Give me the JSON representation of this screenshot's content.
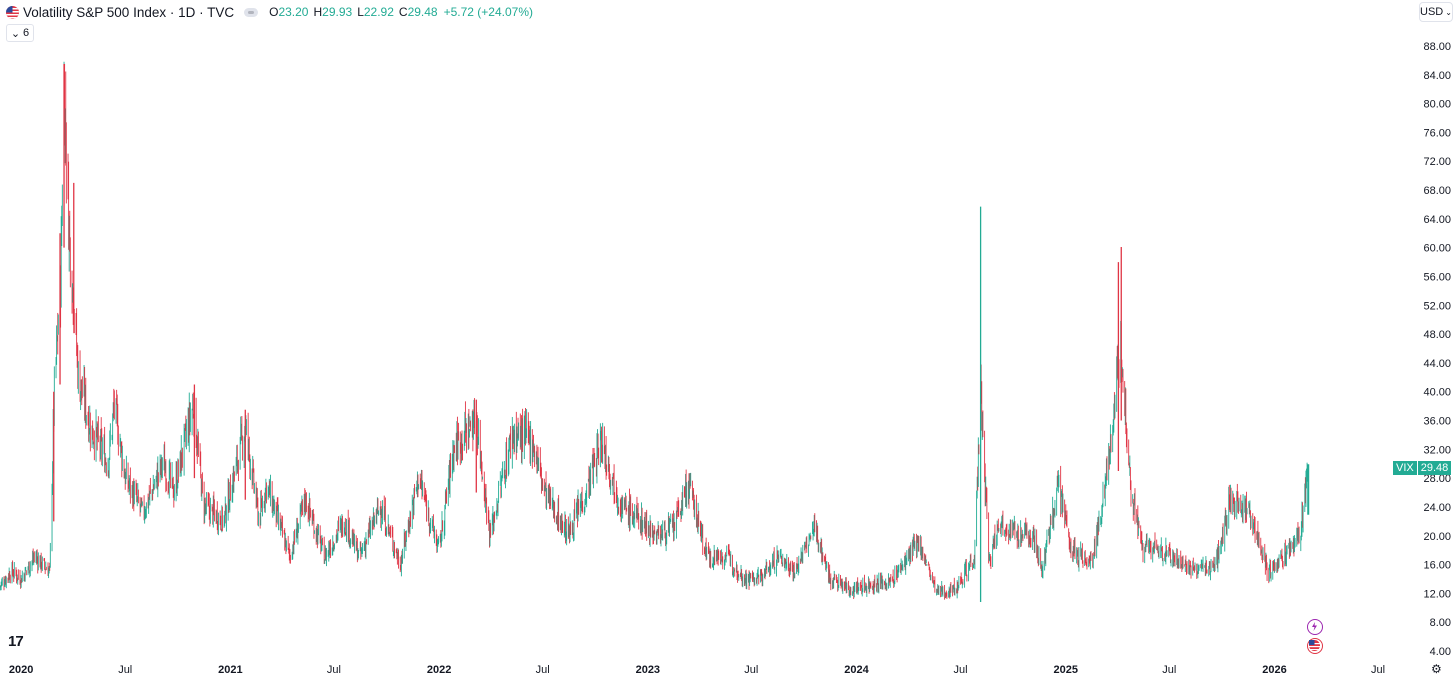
{
  "header": {
    "title": "Volatility S&P 500 Index · 1D · TVC",
    "open_key": "O",
    "open": "23.20",
    "high_key": "H",
    "high": "29.93",
    "low_key": "L",
    "low": "22.92",
    "close_key": "C",
    "close": "29.48",
    "change": "+5.72 (+24.07%)"
  },
  "indicators_toggle": {
    "count": "6"
  },
  "currency": "USD",
  "logo": "17",
  "last_price": {
    "symbol": "VIX",
    "value": "29.48"
  },
  "colors": {
    "up": "#22ab94",
    "down": "#e03545",
    "label": "#22ab94"
  },
  "icons": [
    "us-flag-icon",
    "visibility-toggle-icon",
    "chevron-down-icon",
    "lightning-event-icon",
    "flag-event-icon",
    "gear-icon"
  ],
  "chart_data": {
    "type": "candlestick",
    "title": "Volatility S&P 500 Index · 1D · TVC",
    "xlabel": "",
    "ylabel": "",
    "ylim": [
      4,
      88
    ],
    "y_ticks": [
      "88.00",
      "84.00",
      "80.00",
      "76.00",
      "72.00",
      "68.00",
      "64.00",
      "60.00",
      "56.00",
      "52.00",
      "48.00",
      "44.00",
      "40.00",
      "36.00",
      "32.00",
      "28.00",
      "24.00",
      "20.00",
      "16.00",
      "12.00",
      "8.00",
      "4.00"
    ],
    "x_ticks": [
      {
        "label": "2020",
        "date": "2020-01-01",
        "year": true
      },
      {
        "label": "Jul",
        "date": "2020-07-01",
        "year": false
      },
      {
        "label": "2021",
        "date": "2021-01-01",
        "year": true
      },
      {
        "label": "Jul",
        "date": "2021-07-01",
        "year": false
      },
      {
        "label": "2022",
        "date": "2022-01-01",
        "year": true
      },
      {
        "label": "Jul",
        "date": "2022-07-01",
        "year": false
      },
      {
        "label": "2023",
        "date": "2023-01-01",
        "year": true
      },
      {
        "label": "Jul",
        "date": "2023-07-01",
        "year": false
      },
      {
        "label": "2024",
        "date": "2024-01-01",
        "year": true
      },
      {
        "label": "Jul",
        "date": "2024-07-01",
        "year": false
      },
      {
        "label": "2025",
        "date": "2025-01-01",
        "year": true
      },
      {
        "label": "Jul",
        "date": "2025-07-01",
        "year": false
      },
      {
        "label": "2026",
        "date": "2026-01-01",
        "year": true
      },
      {
        "label": "Jul",
        "date": "2026-07-01",
        "year": false
      }
    ],
    "x_range": [
      "2019-11-25",
      "2026-08-05"
    ],
    "series": [
      {
        "path": [
          [
            "2019-11-25",
            13
          ],
          [
            "2019-12-15",
            15
          ],
          [
            "2020-01-01",
            14
          ],
          [
            "2020-01-25",
            17
          ],
          [
            "2020-02-20",
            15
          ],
          [
            "2020-02-28",
            40
          ],
          [
            "2020-03-10",
            55
          ],
          [
            "2020-03-16",
            82
          ],
          [
            "2020-03-25",
            62
          ],
          [
            "2020-04-10",
            42
          ],
          [
            "2020-05-01",
            35
          ],
          [
            "2020-06-01",
            30
          ],
          [
            "2020-06-12",
            38
          ],
          [
            "2020-07-01",
            28
          ],
          [
            "2020-08-01",
            23
          ],
          [
            "2020-09-05",
            30
          ],
          [
            "2020-09-24",
            26
          ],
          [
            "2020-10-28",
            38
          ],
          [
            "2020-11-15",
            24
          ],
          [
            "2020-12-20",
            22
          ],
          [
            "2021-01-27",
            35
          ],
          [
            "2021-02-20",
            22
          ],
          [
            "2021-03-05",
            27
          ],
          [
            "2021-04-15",
            17
          ],
          [
            "2021-05-12",
            25
          ],
          [
            "2021-06-15",
            17
          ],
          [
            "2021-07-19",
            22
          ],
          [
            "2021-08-15",
            17
          ],
          [
            "2021-09-20",
            24
          ],
          [
            "2021-10-25",
            16
          ],
          [
            "2021-11-26",
            28
          ],
          [
            "2021-12-20",
            21
          ],
          [
            "2022-01-01",
            18
          ],
          [
            "2022-01-26",
            32
          ],
          [
            "2022-02-24",
            35
          ],
          [
            "2022-03-07",
            36
          ],
          [
            "2022-03-31",
            20
          ],
          [
            "2022-05-09",
            34
          ],
          [
            "2022-06-13",
            33
          ],
          [
            "2022-07-05",
            26
          ],
          [
            "2022-08-15",
            20
          ],
          [
            "2022-09-15",
            26
          ],
          [
            "2022-10-12",
            33
          ],
          [
            "2022-11-15",
            24
          ],
          [
            "2022-12-20",
            22
          ],
          [
            "2023-01-15",
            20
          ],
          [
            "2023-02-15",
            21
          ],
          [
            "2023-03-13",
            27
          ],
          [
            "2023-04-15",
            17
          ],
          [
            "2023-05-20",
            17
          ],
          [
            "2023-06-20",
            14
          ],
          [
            "2023-07-15",
            14
          ],
          [
            "2023-08-18",
            17
          ],
          [
            "2023-09-15",
            15
          ],
          [
            "2023-10-20",
            21
          ],
          [
            "2023-11-15",
            14
          ],
          [
            "2023-12-20",
            12.5
          ],
          [
            "2024-01-20",
            13
          ],
          [
            "2024-03-01",
            13.5
          ],
          [
            "2024-04-19",
            19
          ],
          [
            "2024-05-20",
            12
          ],
          [
            "2024-06-20",
            12.5
          ],
          [
            "2024-07-25",
            17
          ],
          [
            "2024-08-05",
            39
          ],
          [
            "2024-08-20",
            16
          ],
          [
            "2024-09-06",
            22
          ],
          [
            "2024-10-10",
            20
          ],
          [
            "2024-11-05",
            20
          ],
          [
            "2024-11-20",
            15
          ],
          [
            "2024-12-18",
            27
          ],
          [
            "2025-01-10",
            18
          ],
          [
            "2025-02-15",
            16
          ],
          [
            "2025-03-10",
            26
          ],
          [
            "2025-04-08",
            46
          ],
          [
            "2025-04-25",
            26
          ],
          [
            "2025-05-15",
            18
          ],
          [
            "2025-06-15",
            18
          ],
          [
            "2025-07-15",
            16.5
          ],
          [
            "2025-08-15",
            15
          ],
          [
            "2025-09-20",
            16
          ],
          [
            "2025-10-16",
            25
          ],
          [
            "2025-11-20",
            23
          ],
          [
            "2025-12-20",
            15
          ],
          [
            "2026-01-20",
            17
          ],
          [
            "2026-02-15",
            20
          ],
          [
            "2026-03-01",
            29.48
          ]
        ],
        "spikes": [
          {
            "date": "2020-03-16",
            "high": 85.5,
            "low": 60
          },
          {
            "date": "2020-03-09",
            "high": 62,
            "low": 41
          },
          {
            "date": "2020-02-27",
            "high": 40,
            "low": 22
          },
          {
            "date": "2020-04-02",
            "high": 69,
            "low": 50
          },
          {
            "date": "2024-08-05",
            "high": 65.7,
            "low": 10.8
          },
          {
            "date": "2025-04-08",
            "high": 60.1,
            "low": 36
          },
          {
            "date": "2025-04-03",
            "high": 58,
            "low": 29
          },
          {
            "date": "2022-03-07",
            "high": 38.9,
            "low": 26
          },
          {
            "date": "2021-01-27",
            "high": 37.5,
            "low": 25
          },
          {
            "date": "2020-10-30",
            "high": 41,
            "low": 28
          }
        ]
      }
    ],
    "last": 29.48
  }
}
